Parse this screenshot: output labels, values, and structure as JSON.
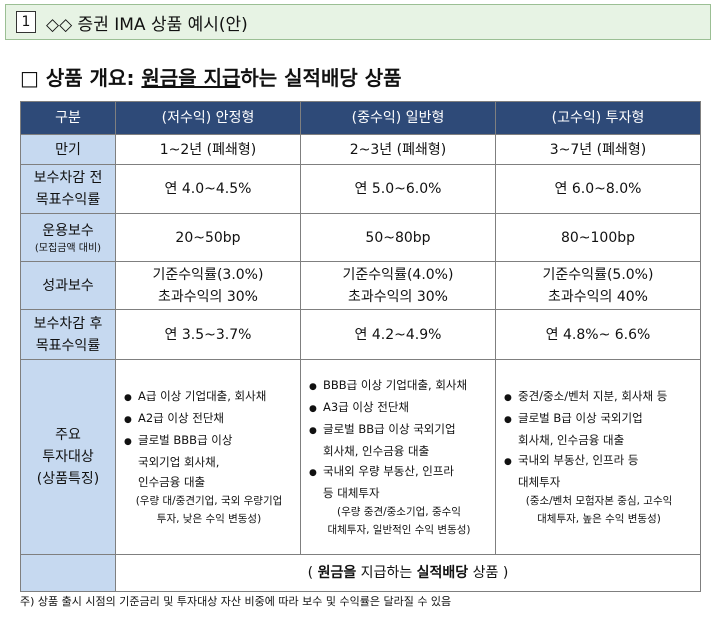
{
  "header": {
    "number": "1",
    "title": "◇◇ 증권 IMA 상품 예시(안)"
  },
  "section": {
    "mark": "□",
    "parts": [
      "상품 개요: ",
      "원금을 지급",
      "하는 실적배당 상품"
    ]
  },
  "table": {
    "header": [
      "구분",
      "(저수익) 안정형",
      "(중수익) 일반형",
      "(고수익) 투자형"
    ],
    "rows": [
      {
        "label": [
          "만기"
        ],
        "cells": [
          [
            "1~2년 (폐쇄형)"
          ],
          [
            "2~3년 (폐쇄형)"
          ],
          [
            "3~7년 (폐쇄형)"
          ]
        ]
      },
      {
        "label": [
          "보수차감 전",
          "목표수익률"
        ],
        "cells": [
          [
            "연 4.0~4.5%"
          ],
          [
            "연 5.0~6.0%"
          ],
          [
            "연 6.0~8.0%"
          ]
        ]
      },
      {
        "label": [
          "운용보수",
          "(모집금액 대비)"
        ],
        "cells": [
          [
            "20~50bp"
          ],
          [
            "50~80bp"
          ],
          [
            "80~100bp"
          ]
        ]
      },
      {
        "label": [
          "성과보수"
        ],
        "cells": [
          [
            "기준수익률(3.0%)",
            "초과수익의 30%"
          ],
          [
            "기준수익률(4.0%)",
            "초과수익의 30%"
          ],
          [
            "기준수익률(5.0%)",
            "초과수익의 40%"
          ]
        ]
      },
      {
        "label": [
          "보수차감 후",
          "목표수익률"
        ],
        "cells": [
          [
            "연 3.5~3.7%"
          ],
          [
            "연 4.2~4.9%"
          ],
          [
            "연 4.8%~ 6.6%"
          ]
        ]
      }
    ],
    "targets": {
      "label": [
        "주요",
        "투자대상",
        "(상품특징)"
      ],
      "cells": [
        {
          "bullets": [
            [
              "A급 이상 기업대출, 회사채"
            ],
            [
              "A2급 이상 전단채"
            ],
            [
              "글로벌 BBB급 이상",
              "국외기업 회사채,",
              "인수금융 대출"
            ]
          ],
          "note": [
            "(우량 대/중견기업, 국외 우량기업",
            "투자, 낮은 수익 변동성)"
          ]
        },
        {
          "bullets": [
            [
              "BBB급 이상 기업대출, 회사채"
            ],
            [
              "A3급 이상 전단채"
            ],
            [
              "글로벌 BB급 이상 국외기업",
              "회사채, 인수금융 대출"
            ],
            [
              "국내외 우량 부동산, 인프라",
              "등 대체투자"
            ]
          ],
          "note": [
            "(우량 중견/중소기업, 중수익",
            "대체투자, 일반적인 수익 변동성)"
          ]
        },
        {
          "bullets": [
            [
              "중견/중소/벤처 지분, 회사채 등"
            ],
            [
              "글로벌 B급 이상 국외기업",
              "회사채, 인수금융 대출"
            ],
            [
              "국내외 부동산, 인프라 등",
              "대체투자"
            ]
          ],
          "note": [
            "(중소/벤처 모험자본 중심, 고수익",
            "대체투자, 높은 수익 변동성)"
          ]
        }
      ]
    },
    "footer": [
      "( ",
      "원금을",
      " 지급하는 ",
      "실적배당",
      " 상품 )"
    ]
  },
  "note": "주) 상품 출시 시점의 기준금리 및 투자대상 자산 비중에 따라 보수 및 수익률은 달라질 수 있음"
}
